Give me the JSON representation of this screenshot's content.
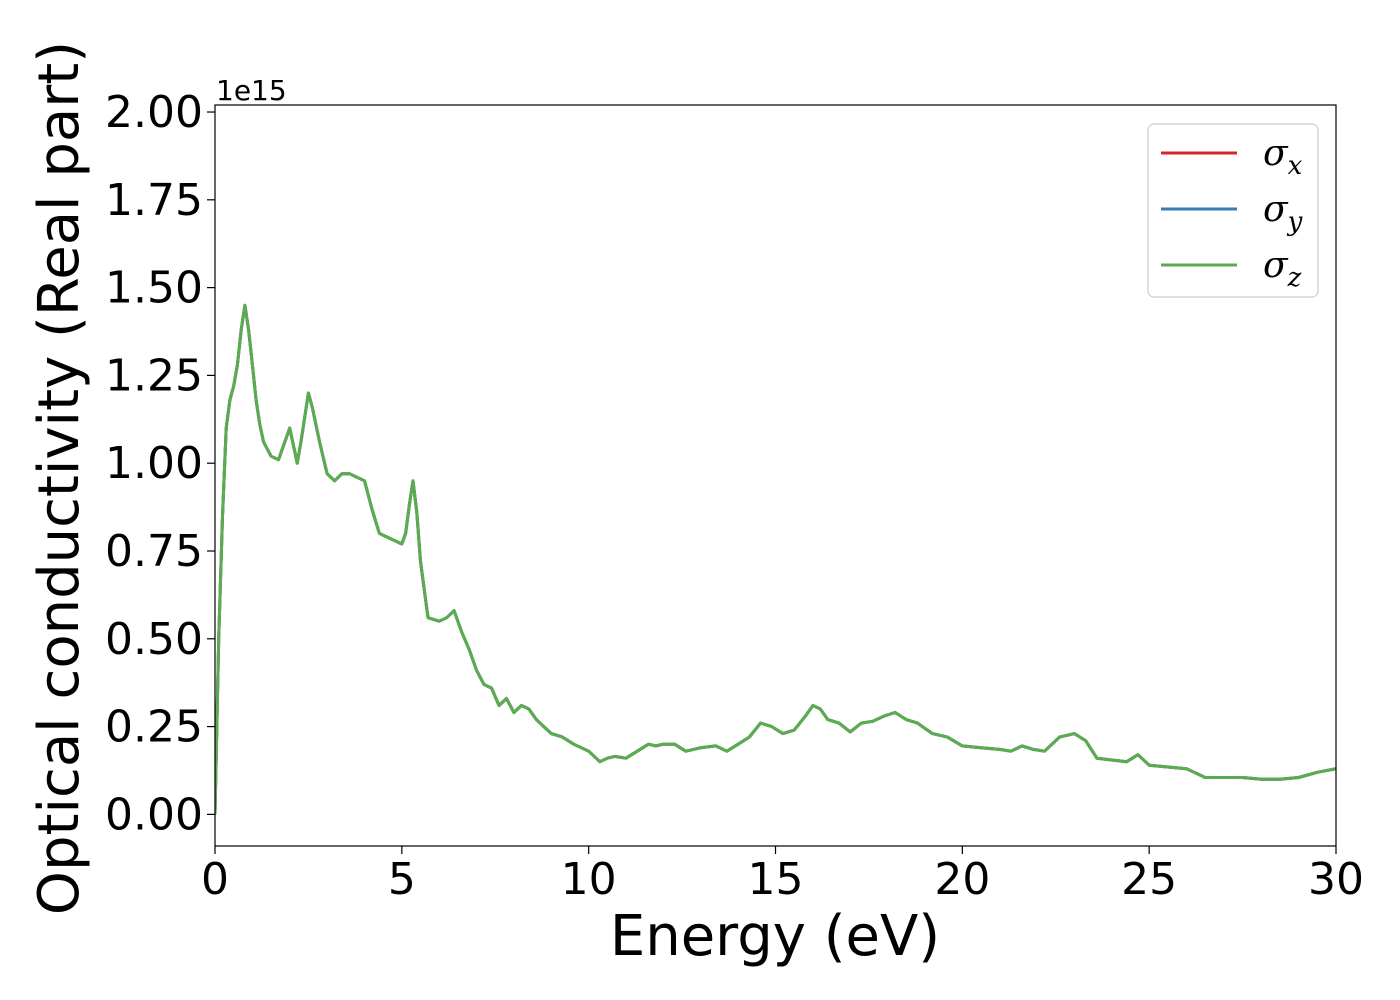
{
  "chart_data": {
    "type": "line",
    "xlabel": "Energy (eV)",
    "ylabel": "Optical conductivity (Real part)",
    "offset_text": "1e15",
    "xlim": [
      0,
      30
    ],
    "ylim": [
      -0.09,
      2.02
    ],
    "xticks": [
      "0",
      "5",
      "10",
      "15",
      "20",
      "25",
      "30"
    ],
    "yticks": [
      "0.00",
      "0.25",
      "0.50",
      "0.75",
      "1.00",
      "1.25",
      "1.50",
      "1.75",
      "2.00"
    ],
    "grid": false,
    "legend_position": "top-right",
    "colors": {
      "sigma_x": "#d62728",
      "sigma_y": "#377eb8",
      "sigma_z": "#5aad4e"
    },
    "series": [
      {
        "name": "σ",
        "subscript": "x",
        "key": "sigma_x"
      },
      {
        "name": "σ",
        "subscript": "y",
        "key": "sigma_y"
      },
      {
        "name": "σ",
        "subscript": "z",
        "key": "sigma_z"
      }
    ],
    "x": [
      0,
      0.1,
      0.2,
      0.3,
      0.4,
      0.5,
      0.6,
      0.7,
      0.8,
      0.9,
      1.0,
      1.1,
      1.2,
      1.3,
      1.5,
      1.7,
      1.9,
      2.0,
      2.1,
      2.2,
      2.3,
      2.5,
      2.6,
      2.8,
      3.0,
      3.2,
      3.4,
      3.6,
      3.8,
      4.0,
      4.2,
      4.4,
      4.6,
      4.8,
      5.0,
      5.1,
      5.2,
      5.3,
      5.4,
      5.5,
      5.7,
      6.0,
      6.2,
      6.4,
      6.6,
      6.8,
      7.0,
      7.2,
      7.4,
      7.6,
      7.8,
      8.0,
      8.2,
      8.4,
      8.6,
      8.8,
      9.0,
      9.3,
      9.6,
      10.0,
      10.3,
      10.5,
      10.7,
      11.0,
      11.3,
      11.6,
      11.8,
      12.0,
      12.3,
      12.6,
      13.0,
      13.4,
      13.7,
      14.0,
      14.3,
      14.6,
      14.9,
      15.2,
      15.5,
      15.8,
      16.0,
      16.2,
      16.4,
      16.7,
      17.0,
      17.3,
      17.6,
      17.9,
      18.2,
      18.5,
      18.8,
      19.2,
      19.6,
      20.0,
      20.5,
      21.0,
      21.3,
      21.6,
      21.9,
      22.2,
      22.6,
      23.0,
      23.3,
      23.6,
      24.0,
      24.4,
      24.7,
      25.0,
      25.5,
      26.0,
      26.5,
      27.0,
      27.5,
      28.0,
      28.5,
      29.0,
      29.5,
      30.0
    ],
    "values": [
      0.0,
      0.5,
      0.85,
      1.1,
      1.18,
      1.22,
      1.28,
      1.38,
      1.45,
      1.38,
      1.28,
      1.18,
      1.11,
      1.06,
      1.02,
      1.01,
      1.07,
      1.1,
      1.05,
      1.0,
      1.06,
      1.2,
      1.16,
      1.06,
      0.97,
      0.95,
      0.97,
      0.97,
      0.96,
      0.95,
      0.87,
      0.8,
      0.79,
      0.78,
      0.77,
      0.8,
      0.88,
      0.95,
      0.86,
      0.72,
      0.56,
      0.55,
      0.56,
      0.58,
      0.52,
      0.47,
      0.41,
      0.37,
      0.36,
      0.31,
      0.33,
      0.29,
      0.31,
      0.3,
      0.27,
      0.25,
      0.23,
      0.22,
      0.2,
      0.18,
      0.15,
      0.16,
      0.165,
      0.16,
      0.18,
      0.2,
      0.195,
      0.2,
      0.2,
      0.18,
      0.19,
      0.195,
      0.18,
      0.2,
      0.22,
      0.26,
      0.25,
      0.23,
      0.24,
      0.28,
      0.31,
      0.3,
      0.27,
      0.26,
      0.235,
      0.26,
      0.265,
      0.28,
      0.29,
      0.27,
      0.26,
      0.23,
      0.22,
      0.195,
      0.19,
      0.185,
      0.18,
      0.195,
      0.185,
      0.18,
      0.22,
      0.23,
      0.21,
      0.16,
      0.155,
      0.15,
      0.17,
      0.14,
      0.135,
      0.13,
      0.105,
      0.105,
      0.105,
      0.1,
      0.1,
      0.105,
      0.12,
      0.13
    ]
  }
}
